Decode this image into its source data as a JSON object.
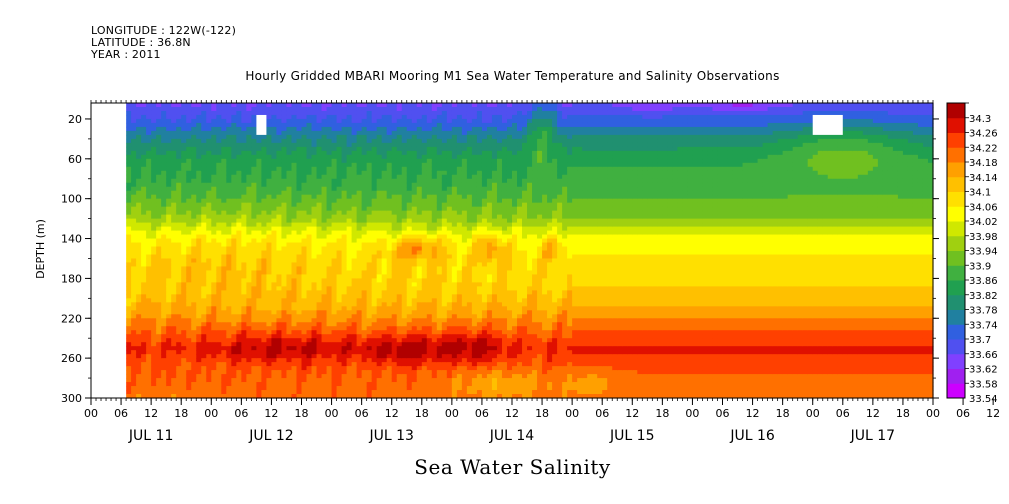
{
  "header": {
    "longitude": "LONGITUDE : 122W(-122)",
    "latitude": "LATITUDE : 36.8N",
    "year": "YEAR : 2011"
  },
  "chart_data": {
    "type": "heatmap",
    "title": "Hourly Gridded MBARI Mooring M1 Sea Water Temperature and Salinity Observations",
    "xlabel": "Sea Water Salinity",
    "ylabel": "DEPTH (m)",
    "x_hour_ticks": [
      "00",
      "06",
      "12",
      "18",
      "00",
      "06",
      "12",
      "18",
      "00",
      "06",
      "12",
      "18",
      "00",
      "06",
      "12",
      "18",
      "00",
      "06",
      "12",
      "18",
      "00",
      "06",
      "12",
      "18",
      "00",
      "06",
      "12",
      "18",
      "00",
      "06",
      "12",
      "18",
      "00"
    ],
    "x_day_labels": [
      "JUL 11",
      "JUL 12",
      "JUL 13",
      "JUL 14",
      "JUL 15",
      "JUL 16",
      "JUL 17"
    ],
    "y_ticks": [
      20,
      60,
      100,
      140,
      180,
      220,
      260,
      300
    ],
    "ylim": [
      300,
      4
    ],
    "x_range_hours": [
      0,
      168
    ],
    "data_start_hour": 7,
    "colorbar_levels": [
      "33.54",
      "33.58",
      "33.62",
      "33.66",
      "33.7",
      "33.74",
      "33.78",
      "33.82",
      "33.86",
      "33.9",
      "33.94",
      "33.98",
      "34.02",
      "34.06",
      "34.1",
      "34.14",
      "34.18",
      "34.22",
      "34.26",
      "34.3"
    ],
    "colorbar_colors": [
      "#cc00ff",
      "#a020f0",
      "#8040ff",
      "#5050f0",
      "#3060e0",
      "#2080a0",
      "#209070",
      "#20a050",
      "#40b040",
      "#70c020",
      "#a0d010",
      "#d0e800",
      "#ffff00",
      "#ffe000",
      "#ffc000",
      "#ffa000",
      "#ff7000",
      "#ff4000",
      "#e01000",
      "#b00000"
    ],
    "missing_data": [
      {
        "x_hours": [
          0,
          7
        ],
        "depth": [
          4,
          300
        ]
      },
      {
        "x_hours": [
          33,
          35
        ],
        "depth": [
          16,
          36
        ]
      },
      {
        "x_hours": [
          144,
          150
        ],
        "depth": [
          16,
          36
        ]
      }
    ],
    "profile": [
      {
        "depth": 4,
        "salinity": 33.66
      },
      {
        "depth": 20,
        "salinity": 33.7
      },
      {
        "depth": 40,
        "salinity": 33.78
      },
      {
        "depth": 60,
        "salinity": 33.84
      },
      {
        "depth": 90,
        "salinity": 33.88
      },
      {
        "depth": 120,
        "salinity": 33.95
      },
      {
        "depth": 140,
        "salinity": 34.04
      },
      {
        "depth": 160,
        "salinity": 34.08
      },
      {
        "depth": 190,
        "salinity": 34.1
      },
      {
        "depth": 210,
        "salinity": 34.14
      },
      {
        "depth": 230,
        "salinity": 34.2
      },
      {
        "depth": 250,
        "salinity": 34.26
      },
      {
        "depth": 270,
        "salinity": 34.22
      },
      {
        "depth": 300,
        "salinity": 34.2
      }
    ],
    "features": [
      {
        "x_hour": 38,
        "depth": 250,
        "delta": 0.05,
        "x_spread": 14,
        "d_spread": 18
      },
      {
        "x_hour": 63,
        "depth": 252,
        "delta": 0.07,
        "x_spread": 8,
        "d_spread": 16
      },
      {
        "x_hour": 76,
        "depth": 248,
        "delta": 0.06,
        "x_spread": 6,
        "d_spread": 18
      },
      {
        "x_hour": 65,
        "depth": 150,
        "delta": 0.12,
        "x_spread": 5,
        "d_spread": 12
      },
      {
        "x_hour": 80,
        "depth": 150,
        "delta": 0.1,
        "x_spread": 3,
        "d_spread": 14
      },
      {
        "x_hour": 92,
        "depth": 150,
        "delta": 0.08,
        "x_spread": 2,
        "d_spread": 12
      },
      {
        "x_hour": 28,
        "depth": 160,
        "delta": 0.03,
        "x_spread": 18,
        "d_spread": 40
      },
      {
        "x_hour": 90,
        "depth": 30,
        "delta": 0.1,
        "x_spread": 3,
        "d_spread": 35
      },
      {
        "x_hour": 82,
        "depth": 285,
        "delta": -0.06,
        "x_spread": 10,
        "d_spread": 14
      },
      {
        "x_hour": 100,
        "depth": 285,
        "delta": -0.05,
        "x_spread": 4,
        "d_spread": 12
      },
      {
        "x_hour": 130,
        "depth": 6,
        "delta": -0.05,
        "x_spread": 8,
        "d_spread": 6
      },
      {
        "x_hour": 112,
        "depth": 6,
        "delta": -0.04,
        "x_spread": 6,
        "d_spread": 6
      },
      {
        "x_hour": 150,
        "depth": 50,
        "delta": 0.08,
        "x_spread": 12,
        "d_spread": 30
      }
    ]
  }
}
